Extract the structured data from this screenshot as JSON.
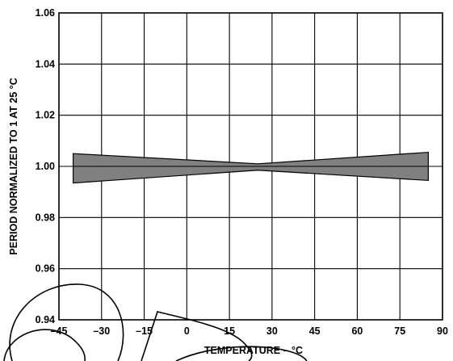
{
  "chart_data": {
    "type": "area",
    "title": "",
    "xlabel": "TEMPERATURE – °C",
    "ylabel": "PERIOD NORMALIZED TO 1 AT 25 °C",
    "xlim": [
      -45,
      90
    ],
    "ylim": [
      0.94,
      1.06
    ],
    "x_ticks": [
      -45,
      -30,
      -15,
      0,
      15,
      30,
      45,
      60,
      75,
      90
    ],
    "x_tick_labels": [
      "–45",
      "–30",
      "–15",
      "0",
      "15",
      "30",
      "45",
      "60",
      "75",
      "90"
    ],
    "y_ticks": [
      0.94,
      0.96,
      0.98,
      1.0,
      1.02,
      1.04,
      1.06
    ],
    "y_tick_labels": [
      "0.94",
      "0.96",
      "0.98",
      "1.00",
      "1.02",
      "1.04",
      "1.06"
    ],
    "grid": true,
    "band": {
      "x": [
        -40,
        25,
        85
      ],
      "upper": [
        1.005,
        1.001,
        1.0055
      ],
      "lower": [
        0.9935,
        0.9985,
        0.9945
      ],
      "fill_color": "#808080",
      "center_line": 1.0
    },
    "annotation_curves": "four freehand black ink strokes overlaid near the bottom-left and bottom-center"
  }
}
